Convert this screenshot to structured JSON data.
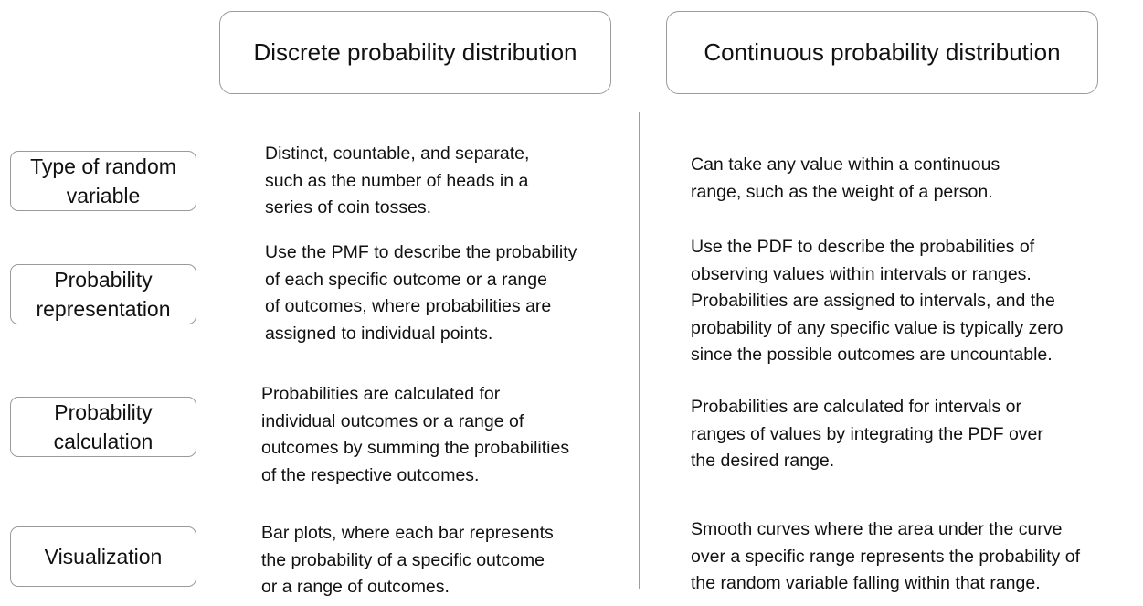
{
  "headers": {
    "discrete": "Discrete probability distribution",
    "continuous": "Continuous probability distribution"
  },
  "rows": [
    {
      "label": "Type of random\nvariable",
      "discrete": "Distinct, countable, and separate,\nsuch as the number of heads in a\nseries of coin tosses.",
      "continuous": "Can take any value within a continuous\nrange, such as the weight of a person."
    },
    {
      "label": "Probability\nrepresentation",
      "discrete": "Use the PMF to describe the probability\nof each specific outcome or a range\nof outcomes, where probabilities are\nassigned to individual points.",
      "continuous": "Use the PDF to describe the probabilities of\nobserving values within intervals or ranges.\nProbabilities are assigned to intervals, and the\nprobability of any specific value is typically zero\nsince the possible outcomes are uncountable."
    },
    {
      "label": "Probability\ncalculation",
      "discrete": "Probabilities are calculated for\nindividual outcomes or a range of\noutcomes by summing the probabilities\nof the respective outcomes.",
      "continuous": "Probabilities are calculated for intervals or\nranges of values by integrating the PDF over\nthe desired range."
    },
    {
      "label": "Visualization",
      "discrete": "Bar plots, where each bar represents\nthe probability of a specific outcome\nor a range of outcomes.",
      "continuous": "Smooth curves where the area under the curve\nover a specific range represents the probability of\nthe random variable falling within that range."
    }
  ]
}
